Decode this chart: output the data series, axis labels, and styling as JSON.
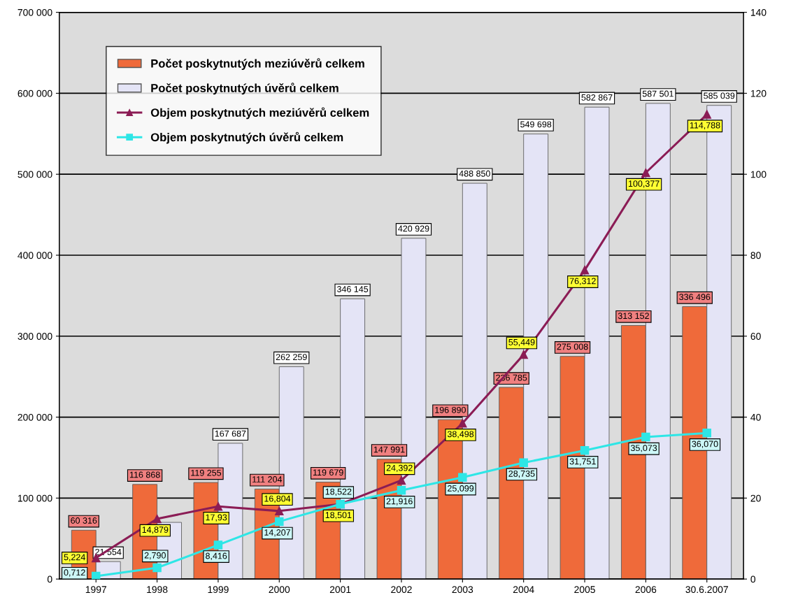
{
  "chart_data": {
    "type": "bar",
    "categories": [
      "1997",
      "1998",
      "1999",
      "2000",
      "2001",
      "2002",
      "2003",
      "2004",
      "2005",
      "2006",
      "30.6.2007"
    ],
    "series": [
      {
        "name": "Počet poskytnutých meziúvěrů celkem",
        "color": "#ef6a3a",
        "values": [
          60316,
          116868,
          119255,
          111204,
          119679,
          147991,
          196890,
          236785,
          275008,
          313152,
          336496
        ],
        "value_labels": [
          "60 316",
          "116 868",
          "119 255",
          "111 204",
          "119 679",
          "147 991",
          "196 890",
          "236 785",
          "275 008",
          "313 152",
          "336 496"
        ]
      },
      {
        "name": "Počet poskytnutých úvěrů celkem",
        "color": "#e4e4f6",
        "values": [
          21554,
          70000,
          167687,
          262259,
          346145,
          420929,
          488850,
          549698,
          582867,
          587501,
          585039
        ],
        "value_labels": [
          "21 554",
          null,
          "167 687",
          "262 259",
          "346 145",
          "420 929",
          "488 850",
          "549 698",
          "582 867",
          "587 501",
          "585 039"
        ]
      },
      {
        "name": "Objem poskytnutých meziúvěrů celkem",
        "type": "line",
        "axis": "y2",
        "marker": "triangle",
        "color": "#8b1c55",
        "values": [
          5.224,
          14.879,
          17.93,
          16.804,
          18.501,
          24.392,
          38.498,
          55.449,
          76.312,
          100.377,
          114.788
        ],
        "value_labels": [
          "5,224",
          "14,879",
          "17,93",
          "16,804",
          "18,501",
          "24,392",
          "38,498",
          "55,449",
          "76,312",
          "100,377",
          "114,788"
        ]
      },
      {
        "name": "Objem poskytnutých úvěrů celkem",
        "type": "line",
        "axis": "y2",
        "marker": "square",
        "color": "#2ee6e6",
        "values": [
          0.712,
          2.79,
          8.416,
          14.207,
          18.522,
          21.916,
          25.099,
          28.735,
          31.751,
          35.073,
          36.07
        ],
        "value_labels": [
          "0,712",
          "2,790",
          "8,416",
          "14,207",
          "18,522",
          "21,916",
          "25,099",
          "28,735",
          "31,751",
          "35,073",
          "36,070"
        ]
      }
    ],
    "ylim": [
      0,
      700000
    ],
    "yticks": [
      {
        "value": 0,
        "label": "0"
      },
      {
        "value": 100000,
        "label": "100 000"
      },
      {
        "value": 200000,
        "label": "200 000"
      },
      {
        "value": 300000,
        "label": "300 000"
      },
      {
        "value": 400000,
        "label": "400 000"
      },
      {
        "value": 500000,
        "label": "500 000"
      },
      {
        "value": 600000,
        "label": "600 000"
      },
      {
        "value": 700000,
        "label": "700 000"
      }
    ],
    "y2lim": [
      0,
      140
    ],
    "y2ticks": [
      0,
      20,
      40,
      60,
      80,
      100,
      120,
      140
    ],
    "grid": "y",
    "legend": "top left"
  }
}
